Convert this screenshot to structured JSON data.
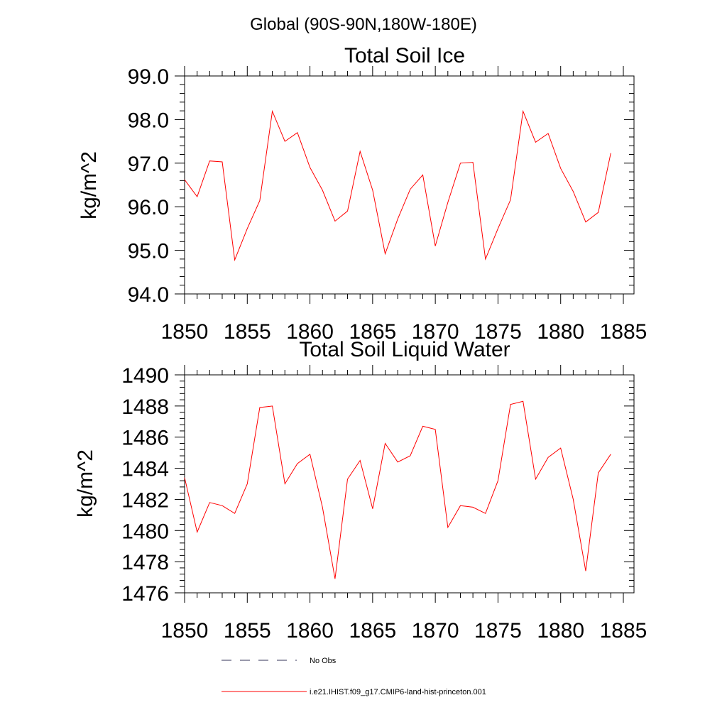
{
  "header": {
    "region": "Global (90S-90N,180W-180E)"
  },
  "colors": {
    "case_line": "#ff0000",
    "obs_line": "#33335a"
  },
  "chart_data": [
    {
      "type": "line",
      "title": "Total Soil Ice",
      "xlabel": "",
      "ylabel": "kg/m^2",
      "xlim": [
        1850,
        1885
      ],
      "ylim": [
        94,
        99
      ],
      "x_ticks": [
        "1850",
        "1855",
        "1860",
        "1865",
        "1870",
        "1875",
        "1880",
        "1885"
      ],
      "y_ticks": [
        "94.0",
        "95.0",
        "96.0",
        "97.0",
        "98.0",
        "99.0"
      ],
      "x": [
        1850,
        1851,
        1852,
        1853,
        1854,
        1855,
        1856,
        1857,
        1858,
        1859,
        1860,
        1861,
        1862,
        1863,
        1864,
        1865,
        1866,
        1867,
        1868,
        1869,
        1870,
        1871,
        1872,
        1873,
        1874,
        1875,
        1876,
        1877,
        1878,
        1879,
        1880,
        1881,
        1882,
        1883,
        1884
      ],
      "series": [
        {
          "name": "i.e21.IHIST.f09_g17.CMIP6-land-hist-princeton.001",
          "values": [
            96.62,
            96.23,
            97.05,
            97.03,
            94.78,
            95.5,
            96.14,
            98.19,
            97.5,
            97.7,
            96.9,
            96.38,
            95.67,
            95.9,
            97.27,
            96.38,
            94.92,
            95.72,
            96.4,
            96.73,
            95.1,
            96.1,
            97.0,
            97.02,
            94.8,
            95.5,
            96.16,
            98.19,
            97.48,
            97.68,
            96.88,
            96.35,
            95.65,
            95.87,
            97.23
          ]
        }
      ]
    },
    {
      "type": "line",
      "title": "Total Soil Liquid Water",
      "xlabel": "",
      "ylabel": "kg/m^2",
      "xlim": [
        1850,
        1885
      ],
      "ylim": [
        1476,
        1490
      ],
      "x_ticks": [
        "1850",
        "1855",
        "1860",
        "1865",
        "1870",
        "1875",
        "1880",
        "1885"
      ],
      "y_ticks": [
        "1476",
        "1478",
        "1480",
        "1482",
        "1484",
        "1486",
        "1488",
        "1490"
      ],
      "x": [
        1850,
        1851,
        1852,
        1853,
        1854,
        1855,
        1856,
        1857,
        1858,
        1859,
        1860,
        1861,
        1862,
        1863,
        1864,
        1865,
        1866,
        1867,
        1868,
        1869,
        1870,
        1871,
        1872,
        1873,
        1874,
        1875,
        1876,
        1877,
        1878,
        1879,
        1880,
        1881,
        1882,
        1883,
        1884
      ],
      "series": [
        {
          "name": "i.e21.IHIST.f09_g17.CMIP6-land-hist-princeton.001",
          "values": [
            1483.4,
            1479.9,
            1481.8,
            1481.6,
            1481.1,
            1483.0,
            1487.9,
            1488.0,
            1483.0,
            1484.3,
            1484.9,
            1481.5,
            1476.9,
            1483.3,
            1484.5,
            1481.4,
            1485.6,
            1484.4,
            1484.8,
            1486.7,
            1486.5,
            1480.2,
            1481.6,
            1481.5,
            1481.1,
            1483.2,
            1488.1,
            1488.3,
            1483.3,
            1484.7,
            1485.3,
            1482.0,
            1477.4,
            1483.7,
            1484.9
          ]
        }
      ]
    }
  ],
  "legend": {
    "items": [
      {
        "label": "No Obs",
        "style": "dashed"
      },
      {
        "label": "i.e21.IHIST.f09_g17.CMIP6-land-hist-princeton.001",
        "style": "solid"
      }
    ]
  }
}
